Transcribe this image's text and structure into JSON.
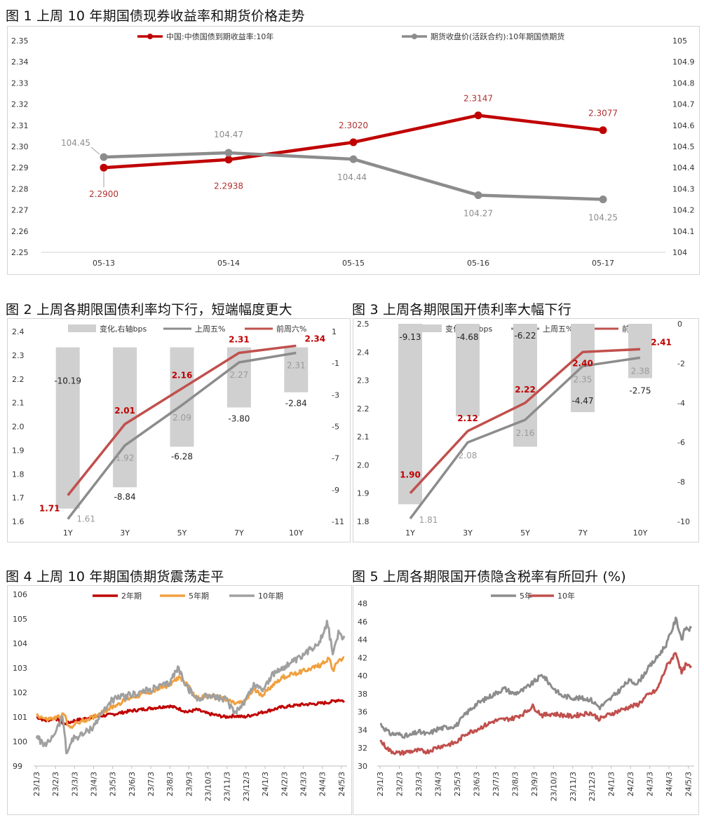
{
  "chart_data": [
    {
      "id": "fig1",
      "type": "line",
      "title": "图 1 上周 10 年期国债现券收益率和期货价格走势",
      "categories": [
        "05-13",
        "05-14",
        "05-15",
        "05-16",
        "05-17"
      ],
      "y_left": {
        "min": 2.25,
        "max": 2.35,
        "step": 0.01,
        "ticks": [
          "2.25",
          "2.26",
          "2.27",
          "2.28",
          "2.29",
          "2.30",
          "2.31",
          "2.32",
          "2.33",
          "2.34",
          "2.35"
        ]
      },
      "y_right": {
        "min": 104.0,
        "max": 105.0,
        "step": 0.1,
        "ticks": [
          "104",
          "104.1",
          "104.2",
          "104.3",
          "104.4",
          "104.5",
          "104.6",
          "104.7",
          "104.8",
          "104.9",
          "105"
        ]
      },
      "series": [
        {
          "name": "中国:中债国债到期收益率:10年",
          "axis": "left",
          "color": "#c00000",
          "values": [
            2.29,
            2.2938,
            2.302,
            2.3147,
            2.3077
          ],
          "labels": [
            "2.2900",
            "2.2938",
            "2.3020",
            "2.3147",
            "2.3077"
          ]
        },
        {
          "name": "期货收盘价(活跃合约):10年期国债期货",
          "axis": "right",
          "color": "#8c8c8c",
          "values": [
            104.45,
            104.47,
            104.44,
            104.27,
            104.25
          ],
          "labels": [
            "104.45",
            "104.47",
            "104.44",
            "104.27",
            "104.25"
          ]
        }
      ]
    },
    {
      "id": "fig2",
      "type": "bar+line",
      "title": "图 2 上周各期限国债利率均下行，短端幅度更大",
      "categories": [
        "1Y",
        "3Y",
        "5Y",
        "7Y",
        "10Y"
      ],
      "y_left": {
        "min": 1.6,
        "max": 2.4,
        "ticks": [
          "1.6",
          "1.7",
          "1.8",
          "1.9",
          "2.0",
          "2.1",
          "2.2",
          "2.3",
          "2.4"
        ]
      },
      "y_right": {
        "min": -11,
        "max": 1,
        "ticks": [
          "-11",
          "-9",
          "-7",
          "-5",
          "-3",
          "-1",
          "1"
        ]
      },
      "bars": {
        "name": "变化,右轴bps",
        "color": "#d0d0d0",
        "values": [
          -10.19,
          -8.84,
          -6.28,
          -3.8,
          -2.84
        ],
        "labels": [
          "-10.19",
          "-8.84",
          "-6.28",
          "-3.80",
          "-2.84"
        ]
      },
      "series": [
        {
          "name": "上周五%",
          "color": "#8c8c8c",
          "values": [
            1.61,
            1.92,
            2.09,
            2.27,
            2.31
          ],
          "labels": [
            "1.61",
            "1.92",
            "2.09",
            "2.27",
            "2.31"
          ]
        },
        {
          "name": "前周六%",
          "color": "#c0504d",
          "values": [
            1.71,
            2.01,
            2.16,
            2.31,
            2.34
          ],
          "labels": [
            "1.71",
            "2.01",
            "2.16",
            "2.31",
            "2.34"
          ]
        }
      ]
    },
    {
      "id": "fig3",
      "type": "bar+line",
      "title": "图 3 上周各期限国开债利率大幅下行",
      "categories": [
        "1Y",
        "3Y",
        "5Y",
        "7Y",
        "10Y"
      ],
      "y_left": {
        "min": 1.8,
        "max": 2.5,
        "ticks": [
          "1.8",
          "1.9",
          "2.0",
          "2.1",
          "2.2",
          "2.3",
          "2.4",
          "2.5"
        ]
      },
      "y_right": {
        "min": -10,
        "max": 0,
        "ticks": [
          "-10",
          "-8",
          "-6",
          "-4",
          "-2",
          "0"
        ]
      },
      "bars": {
        "name": "变化,右轴bps",
        "color": "#d0d0d0",
        "values": [
          -9.13,
          -4.68,
          -6.22,
          -4.47,
          -2.75
        ],
        "labels": [
          "-9.13",
          "-4.68",
          "-6.22",
          "-4.47",
          "-2.75"
        ]
      },
      "series": [
        {
          "name": "上周五%",
          "color": "#8c8c8c",
          "values": [
            1.81,
            2.08,
            2.16,
            2.35,
            2.38
          ],
          "labels": [
            "1.81",
            "2.08",
            "2.16",
            "2.35",
            "2.38"
          ]
        },
        {
          "name": "前周六%",
          "color": "#c0504d",
          "values": [
            1.9,
            2.12,
            2.22,
            2.4,
            2.41
          ],
          "labels": [
            "1.90",
            "2.12",
            "2.22",
            "2.40",
            "2.41"
          ]
        }
      ]
    },
    {
      "id": "fig4",
      "type": "line",
      "title": "图 4 上周 10 年期国债期货震荡走平",
      "x_ticks": [
        "23/1/3",
        "23/2/3",
        "23/3/3",
        "23/4/3",
        "23/5/3",
        "23/6/3",
        "23/7/3",
        "23/8/3",
        "23/9/3",
        "23/10/3",
        "23/11/3",
        "23/12/3",
        "24/1/3",
        "24/2/3",
        "24/3/3",
        "24/4/3",
        "24/5/3"
      ],
      "y": {
        "min": 99,
        "max": 106,
        "ticks": [
          "99",
          "100",
          "101",
          "102",
          "103",
          "104",
          "105",
          "106"
        ]
      },
      "series": [
        {
          "name": "2年期",
          "color": "#c00000",
          "anchors": [
            [
              0,
              101.0
            ],
            [
              0.5,
              100.85
            ],
            [
              1,
              100.95
            ],
            [
              1.5,
              100.7
            ],
            [
              2,
              100.85
            ],
            [
              3,
              101.0
            ],
            [
              4,
              101.1
            ],
            [
              5,
              101.25
            ],
            [
              6,
              101.35
            ],
            [
              7,
              101.45
            ],
            [
              7.5,
              101.35
            ],
            [
              8,
              101.2
            ],
            [
              8.5,
              101.3
            ],
            [
              9,
              101.15
            ],
            [
              10,
              101.0
            ],
            [
              10.5,
              101.05
            ],
            [
              11,
              101.0
            ],
            [
              12,
              101.2
            ],
            [
              13,
              101.4
            ],
            [
              14,
              101.5
            ],
            [
              15,
              101.55
            ],
            [
              15.5,
              101.6
            ],
            [
              16,
              101.7
            ],
            [
              16.3,
              101.65
            ]
          ]
        },
        {
          "name": "5年期",
          "color": "#f0a040",
          "anchors": [
            [
              0,
              101.1
            ],
            [
              0.5,
              100.9
            ],
            [
              1,
              100.95
            ],
            [
              1.5,
              101.1
            ],
            [
              1.7,
              100.55
            ],
            [
              2,
              100.7
            ],
            [
              3,
              101.0
            ],
            [
              4,
              101.4
            ],
            [
              5,
              101.8
            ],
            [
              6,
              102.0
            ],
            [
              7,
              102.3
            ],
            [
              7.5,
              102.6
            ],
            [
              8,
              102.3
            ],
            [
              8.5,
              101.75
            ],
            [
              9,
              101.85
            ],
            [
              10,
              101.75
            ],
            [
              10.5,
              101.55
            ],
            [
              11,
              101.6
            ],
            [
              11.5,
              102.1
            ],
            [
              12,
              101.9
            ],
            [
              12.5,
              102.3
            ],
            [
              13,
              102.6
            ],
            [
              14,
              102.85
            ],
            [
              15,
              103.1
            ],
            [
              15.5,
              103.4
            ],
            [
              15.7,
              102.9
            ],
            [
              16,
              103.35
            ],
            [
              16.3,
              103.4
            ]
          ]
        },
        {
          "name": "10年期",
          "color": "#a0a0a0",
          "anchors": [
            [
              0,
              100.2
            ],
            [
              0.5,
              99.8
            ],
            [
              1,
              100.4
            ],
            [
              1.4,
              101.0
            ],
            [
              1.6,
              99.5
            ],
            [
              1.9,
              100.1
            ],
            [
              2.5,
              100.3
            ],
            [
              3,
              100.6
            ],
            [
              3.5,
              101.2
            ],
            [
              4,
              101.7
            ],
            [
              5,
              101.9
            ],
            [
              6,
              102.1
            ],
            [
              7,
              102.35
            ],
            [
              7.5,
              103.0
            ],
            [
              8,
              102.2
            ],
            [
              8.5,
              101.7
            ],
            [
              9,
              101.9
            ],
            [
              10,
              101.7
            ],
            [
              10.5,
              101.2
            ],
            [
              11,
              101.6
            ],
            [
              11.5,
              102.3
            ],
            [
              12,
              102.15
            ],
            [
              12.5,
              102.7
            ],
            [
              13,
              103.0
            ],
            [
              14,
              103.4
            ],
            [
              15,
              104.1
            ],
            [
              15.4,
              104.85
            ],
            [
              15.7,
              103.6
            ],
            [
              16,
              104.4
            ],
            [
              16.3,
              104.25
            ]
          ]
        }
      ]
    },
    {
      "id": "fig5",
      "type": "line",
      "title": "图 5 上周各期限国开债隐含税率有所回升 (%)",
      "x_ticks": [
        "23/1/3",
        "23/2/3",
        "23/3/3",
        "23/4/3",
        "23/5/3",
        "23/6/3",
        "23/7/3",
        "23/8/3",
        "23/9/3",
        "23/10/3",
        "23/11/3",
        "23/12/3",
        "24/1/3",
        "24/2/3",
        "24/3/3",
        "24/4/3",
        "24/5/3"
      ],
      "y": {
        "min": 30,
        "max": 48,
        "ticks": [
          "30",
          "32",
          "34",
          "36",
          "38",
          "40",
          "42",
          "44",
          "46",
          "48"
        ]
      },
      "series": [
        {
          "name": "5年",
          "color": "#8c8c8c",
          "anchors": [
            [
              0,
              34.7
            ],
            [
              0.5,
              33.6
            ],
            [
              1,
              33.5
            ],
            [
              1.5,
              33.3
            ],
            [
              2,
              33.8
            ],
            [
              2.5,
              33.5
            ],
            [
              3,
              34.1
            ],
            [
              4,
              34.5
            ],
            [
              4.5,
              35.8
            ],
            [
              5,
              36.8
            ],
            [
              6,
              38.0
            ],
            [
              6.5,
              38.6
            ],
            [
              7,
              38.0
            ],
            [
              7.5,
              38.4
            ],
            [
              8,
              39.2
            ],
            [
              8.5,
              40.1
            ],
            [
              9,
              38.8
            ],
            [
              9.5,
              37.8
            ],
            [
              10,
              37.6
            ],
            [
              11,
              37.4
            ],
            [
              11.5,
              36.5
            ],
            [
              12,
              37.3
            ],
            [
              12.5,
              38.3
            ],
            [
              13,
              39.4
            ],
            [
              13.5,
              39.2
            ],
            [
              14,
              40.7
            ],
            [
              14.5,
              42.0
            ],
            [
              15,
              43.5
            ],
            [
              15.5,
              46.3
            ],
            [
              15.8,
              44.0
            ],
            [
              16,
              45.3
            ],
            [
              16.3,
              45.1
            ]
          ]
        },
        {
          "name": "10年",
          "color": "#c0504d",
          "anchors": [
            [
              0,
              32.8
            ],
            [
              0.5,
              31.7
            ],
            [
              1,
              31.4
            ],
            [
              1.5,
              31.6
            ],
            [
              2,
              31.7
            ],
            [
              2.5,
              31.6
            ],
            [
              3,
              32.1
            ],
            [
              4,
              32.6
            ],
            [
              4.5,
              33.6
            ],
            [
              5,
              34.0
            ],
            [
              6,
              35.0
            ],
            [
              7,
              35.3
            ],
            [
              7.5,
              35.8
            ],
            [
              8,
              36.6
            ],
            [
              8.5,
              35.6
            ],
            [
              9,
              35.8
            ],
            [
              10,
              35.5
            ],
            [
              11,
              35.9
            ],
            [
              11.5,
              35.2
            ],
            [
              12,
              35.7
            ],
            [
              13,
              36.5
            ],
            [
              13.5,
              36.8
            ],
            [
              14,
              37.8
            ],
            [
              14.5,
              38.4
            ],
            [
              15,
              41.0
            ],
            [
              15.5,
              42.6
            ],
            [
              15.8,
              40.2
            ],
            [
              16,
              41.2
            ],
            [
              16.3,
              40.9
            ]
          ]
        }
      ]
    }
  ]
}
